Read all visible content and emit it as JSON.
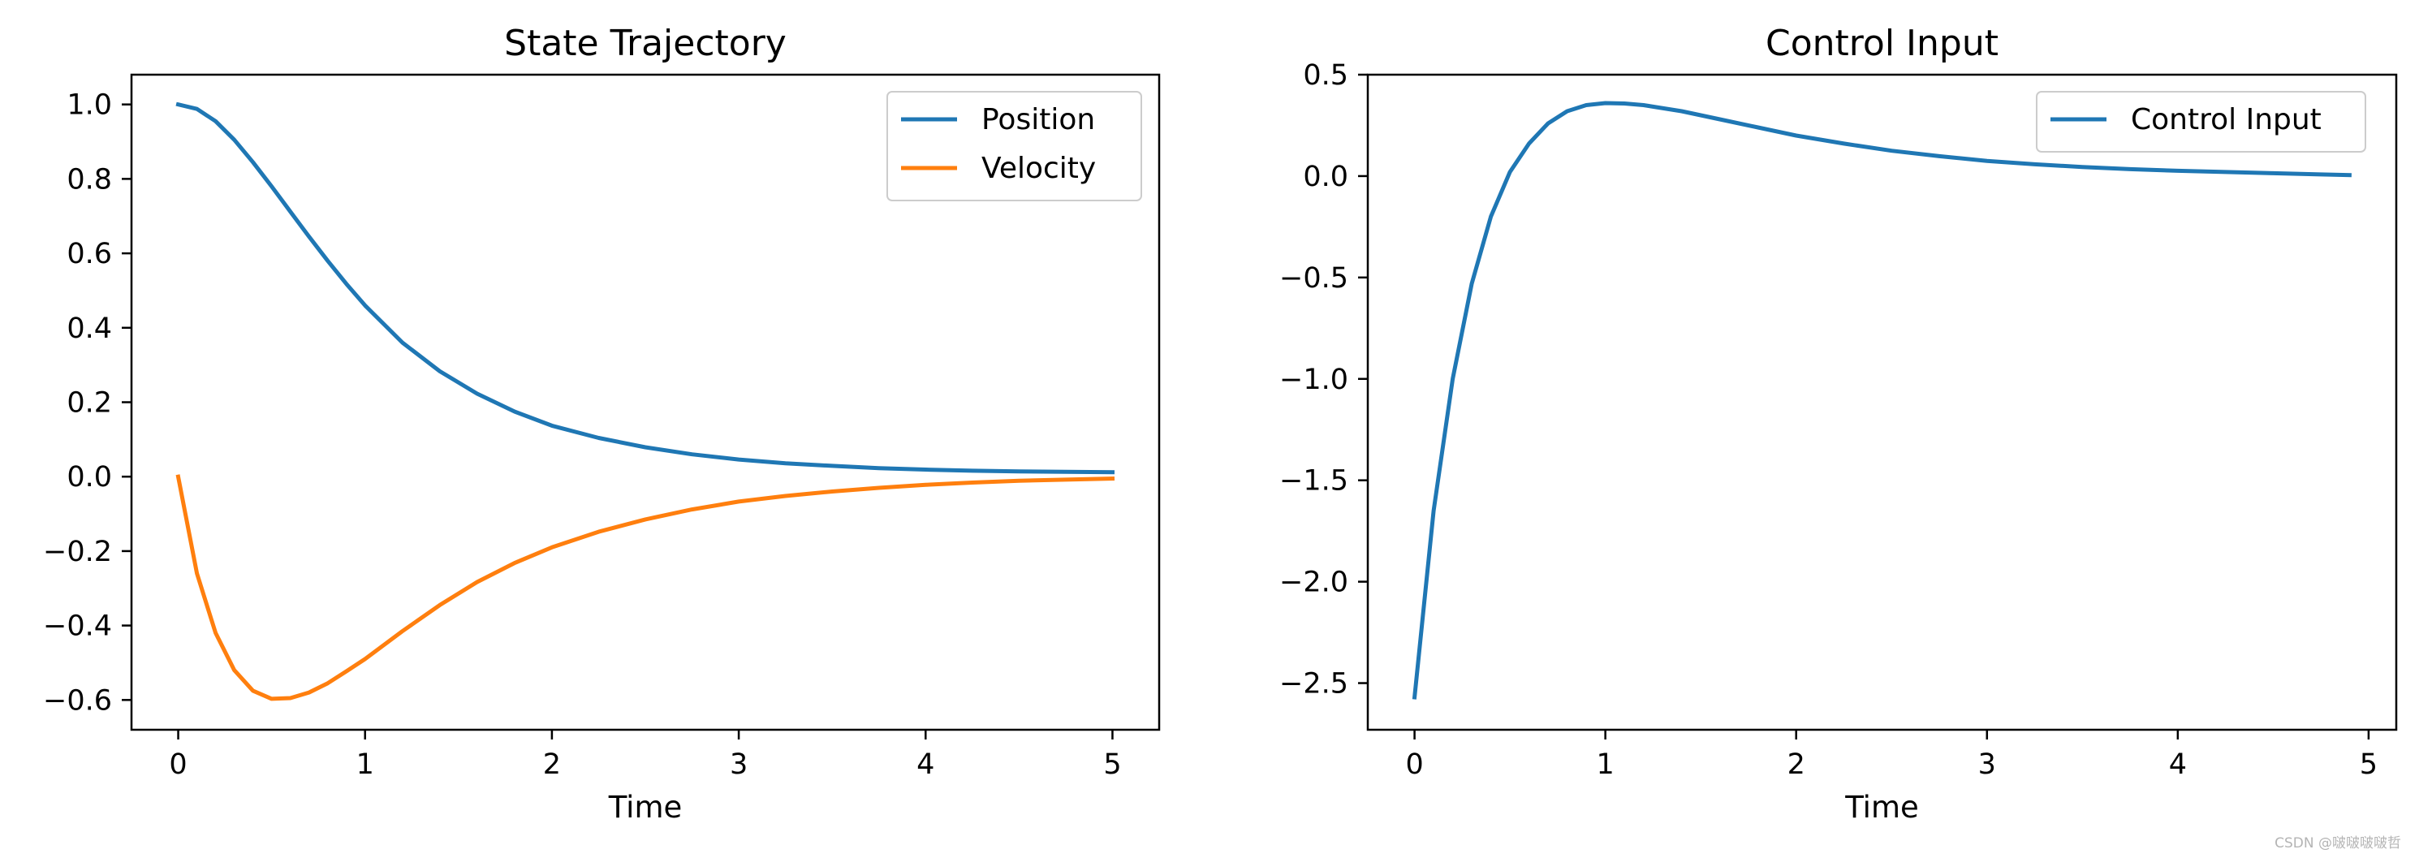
{
  "colors": {
    "position": "#1f77b4",
    "velocity": "#ff7f0e",
    "control": "#1f77b4",
    "axes": "#000000",
    "legend_border": "#cccccc"
  },
  "watermark": "CSDN @啵啵啵啵哲",
  "chart_data": [
    {
      "type": "line",
      "title": "State Trajectory",
      "xlabel": "Time",
      "ylabel": "",
      "xlim": [
        -0.25,
        5.25
      ],
      "ylim": [
        -0.68,
        1.08
      ],
      "xticks": [
        0,
        1,
        2,
        3,
        4,
        5
      ],
      "xtick_labels": [
        "0",
        "1",
        "2",
        "3",
        "4",
        "5"
      ],
      "yticks": [
        -0.6,
        -0.4,
        -0.2,
        0.0,
        0.2,
        0.4,
        0.6,
        0.8,
        1.0
      ],
      "ytick_labels": [
        "−0.6",
        "−0.4",
        "−0.2",
        "0.0",
        "0.2",
        "0.4",
        "0.6",
        "0.8",
        "1.0"
      ],
      "grid": false,
      "legend_position": "top-right",
      "series": [
        {
          "name": "Position",
          "x": [
            0,
            0.1,
            0.2,
            0.3,
            0.4,
            0.5,
            0.6,
            0.7,
            0.8,
            0.9,
            1.0,
            1.2,
            1.4,
            1.6,
            1.8,
            2.0,
            2.25,
            2.5,
            2.75,
            3.0,
            3.25,
            3.5,
            3.75,
            4.0,
            4.25,
            4.5,
            4.75,
            5.0
          ],
          "y": [
            1.0,
            0.988,
            0.955,
            0.905,
            0.845,
            0.78,
            0.712,
            0.645,
            0.58,
            0.518,
            0.46,
            0.36,
            0.283,
            0.223,
            0.175,
            0.137,
            0.104,
            0.079,
            0.06,
            0.046,
            0.036,
            0.029,
            0.023,
            0.019,
            0.016,
            0.014,
            0.013,
            0.012
          ]
        },
        {
          "name": "Velocity",
          "x": [
            0,
            0.1,
            0.2,
            0.3,
            0.4,
            0.5,
            0.6,
            0.7,
            0.8,
            0.9,
            1.0,
            1.2,
            1.4,
            1.6,
            1.8,
            2.0,
            2.25,
            2.5,
            2.75,
            3.0,
            3.25,
            3.5,
            3.75,
            4.0,
            4.25,
            4.5,
            4.75,
            5.0
          ],
          "y": [
            0.0,
            -0.26,
            -0.42,
            -0.52,
            -0.575,
            -0.597,
            -0.595,
            -0.58,
            -0.555,
            -0.523,
            -0.49,
            -0.415,
            -0.345,
            -0.283,
            -0.232,
            -0.19,
            -0.148,
            -0.115,
            -0.088,
            -0.067,
            -0.052,
            -0.04,
            -0.03,
            -0.022,
            -0.016,
            -0.011,
            -0.008,
            -0.005
          ]
        }
      ]
    },
    {
      "type": "line",
      "title": "Control Input",
      "xlabel": "Time",
      "ylabel": "",
      "xlim": [
        -0.245,
        5.145
      ],
      "ylim": [
        -2.73,
        0.5
      ],
      "xticks": [
        0,
        1,
        2,
        3,
        4,
        5
      ],
      "xtick_labels": [
        "0",
        "1",
        "2",
        "3",
        "4",
        "5"
      ],
      "yticks": [
        -2.5,
        -2.0,
        -1.5,
        -1.0,
        -0.5,
        0.0,
        0.5
      ],
      "ytick_labels": [
        "−2.5",
        "−2.0",
        "−1.5",
        "−1.0",
        "−0.5",
        "0.0",
        "0.5"
      ],
      "grid": false,
      "legend_position": "top-right",
      "series": [
        {
          "name": "Control Input",
          "x": [
            0,
            0.1,
            0.2,
            0.3,
            0.4,
            0.5,
            0.6,
            0.7,
            0.8,
            0.9,
            1.0,
            1.1,
            1.2,
            1.4,
            1.6,
            1.8,
            2.0,
            2.25,
            2.5,
            2.75,
            3.0,
            3.25,
            3.5,
            3.75,
            4.0,
            4.25,
            4.5,
            4.75,
            4.9
          ],
          "y": [
            -2.57,
            -1.65,
            -1.0,
            -0.53,
            -0.2,
            0.02,
            0.16,
            0.26,
            0.32,
            0.35,
            0.36,
            0.358,
            0.35,
            0.32,
            0.28,
            0.24,
            0.2,
            0.16,
            0.125,
            0.098,
            0.075,
            0.058,
            0.045,
            0.034,
            0.026,
            0.02,
            0.014,
            0.008,
            0.005
          ]
        }
      ]
    }
  ]
}
